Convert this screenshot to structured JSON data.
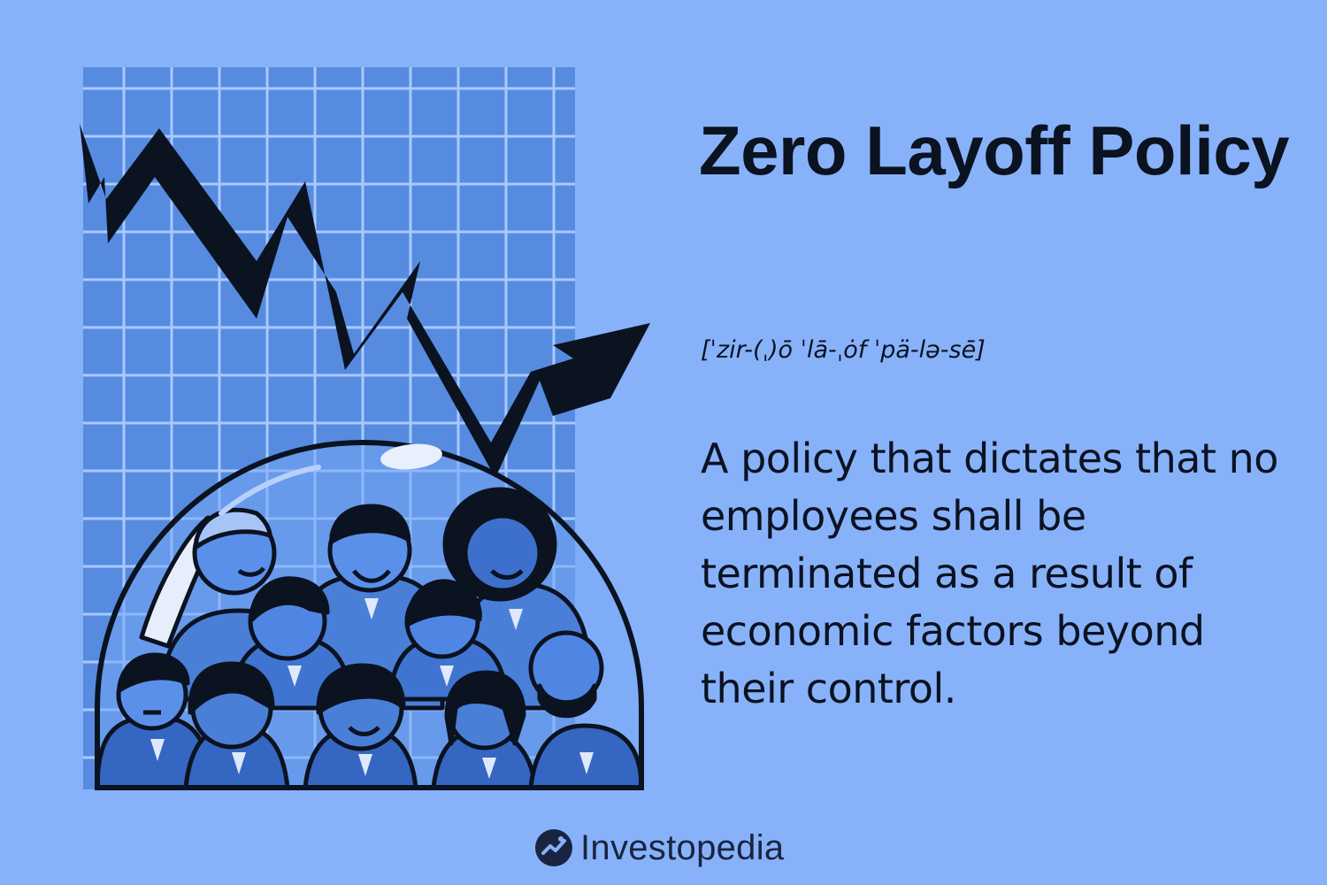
{
  "card": {
    "title": "Zero Layoff Policy",
    "pronunciation": "[ˈzir-(ˌ)ō ˈlā-ˌȯf ˈpä-lə-sē]",
    "definition": "A policy that dictates that no employees shall be terminated as a result of economic factors beyond their control.",
    "brand": "Investopedia"
  },
  "illustration": {
    "grid_icon": "grid-chart-background",
    "arrow_icon": "zigzag-trend-arrow",
    "dome_icon": "glass-dome",
    "people_icon": "group-of-employees"
  },
  "colors": {
    "background": "#87b2fa",
    "grid_fill": "#568be0",
    "grid_lines": "#a9c9ff",
    "ink": "#0b1220",
    "figure_blue": "#4f86e3",
    "figure_dark": "#2c5db8"
  }
}
